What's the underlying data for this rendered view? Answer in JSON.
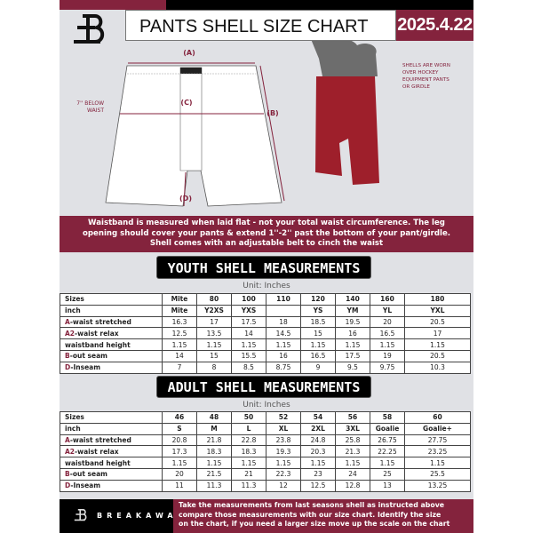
{
  "header": {
    "title": "PANTS SHELL SIZE CHART",
    "date": "2025.4.22",
    "brand": "BREAKAWAY"
  },
  "colors": {
    "accent": "#84233d",
    "background": "#e0e1e5"
  },
  "diagram": {
    "label_a": "(A)",
    "label_b": "(B)",
    "label_c": "(C)",
    "label_d": "(D)",
    "below_waist": [
      "7'' BELOW",
      "WAIST"
    ],
    "note": [
      "SHELLS ARE WORN",
      "OVER HOCKEY",
      "EQUIPMENT PANTS",
      "OR GIRDLE"
    ]
  },
  "banner": [
    "Waistband is measured when laid flat - not your total waist circumference. The leg",
    "opening should cover your pants & extend 1''-2'' past the bottom of your pant/girdle.",
    "Shell comes with an adjustable belt to cinch the waist"
  ],
  "youth": {
    "title": "YOUTH SHELL MEASUREMENTS",
    "unit": "Unit: Inches",
    "rows": [
      {
        "label": "Sizes",
        "values": [
          "Mite",
          "80",
          "100",
          "110",
          "120",
          "140",
          "160",
          "180"
        ]
      },
      {
        "label": "inch",
        "values": [
          "Mite",
          "Y2XS",
          "YXS",
          "",
          "YS",
          "YM",
          "YL",
          "YXL"
        ]
      },
      {
        "prefix": "A",
        "label": "-waist stretched",
        "values": [
          "16.3",
          "17",
          "17.5",
          "18",
          "18.5",
          "19.5",
          "20",
          "20.5"
        ]
      },
      {
        "prefix": "A2",
        "label": "-waist relax",
        "values": [
          "12.5",
          "13.5",
          "14",
          "14.5",
          "15",
          "16",
          "16.5",
          "17"
        ]
      },
      {
        "label": "waistband height",
        "values": [
          "1.15",
          "1.15",
          "1.15",
          "1.15",
          "1.15",
          "1.15",
          "1.15",
          "1.15"
        ]
      },
      {
        "prefix": "B",
        "label": "-out seam",
        "values": [
          "14",
          "15",
          "15.5",
          "16",
          "16.5",
          "17.5",
          "19",
          "20.5"
        ]
      },
      {
        "prefix": "D",
        "label": "-Inseam",
        "values": [
          "7",
          "8",
          "8.5",
          "8.75",
          "9",
          "9.5",
          "9.75",
          "10.3"
        ]
      }
    ]
  },
  "adult": {
    "title": "ADULT SHELL MEASUREMENTS",
    "unit": "Unit: Inches",
    "rows": [
      {
        "label": "Sizes",
        "values": [
          "46",
          "48",
          "50",
          "52",
          "54",
          "56",
          "58",
          "60"
        ]
      },
      {
        "label": "inch",
        "values": [
          "S",
          "M",
          "L",
          "XL",
          "2XL",
          "3XL",
          "Goalie",
          "Goalie+"
        ]
      },
      {
        "prefix": "A",
        "label": "-waist stretched",
        "values": [
          "20.8",
          "21.8",
          "22.8",
          "23.8",
          "24.8",
          "25.8",
          "26.75",
          "27.75"
        ]
      },
      {
        "prefix": "A2",
        "label": "-waist relax",
        "values": [
          "17.3",
          "18.3",
          "18.3",
          "19.3",
          "20.3",
          "21.3",
          "22.25",
          "23.25"
        ]
      },
      {
        "label": "waistband height",
        "values": [
          "1.15",
          "1.15",
          "1.15",
          "1.15",
          "1.15",
          "1.15",
          "1.15",
          "1.15"
        ]
      },
      {
        "prefix": "B",
        "label": "-out seam",
        "values": [
          "20",
          "21.5",
          "21",
          "22.3",
          "23",
          "24",
          "25",
          "25.5"
        ]
      },
      {
        "prefix": "D",
        "label": "-Inseam",
        "values": [
          "11",
          "11.3",
          "11.3",
          "12",
          "12.5",
          "12.8",
          "13",
          "13.25"
        ]
      }
    ]
  },
  "footer": [
    "Take the measurements from last seasons shell as instructed above",
    "compare those measurements  with our size chart. Identify the size",
    "on the chart, if you need a larger size move up the scale on the chart"
  ]
}
